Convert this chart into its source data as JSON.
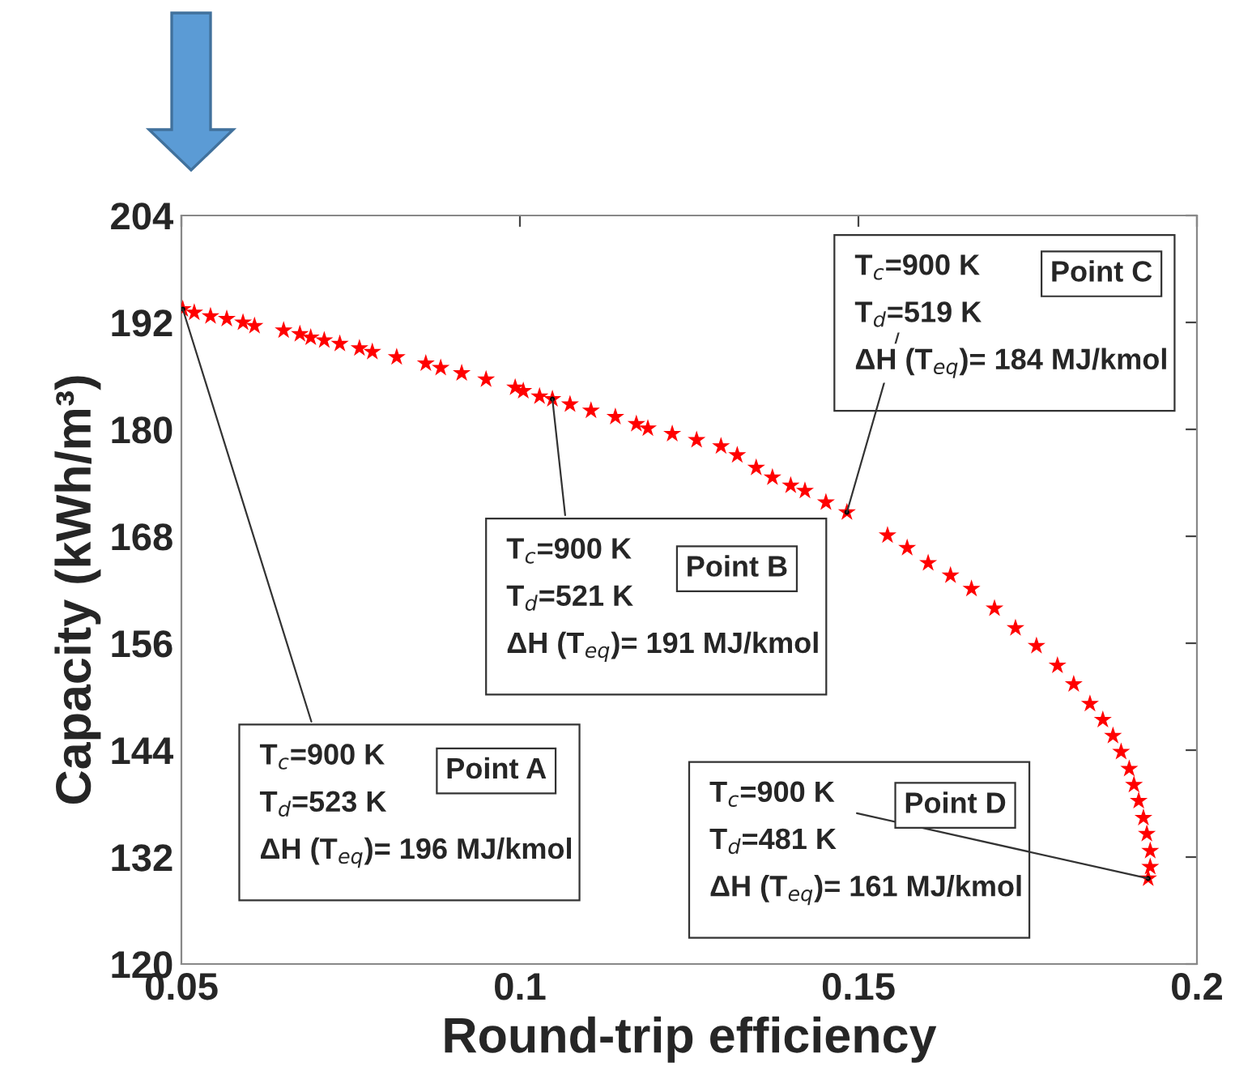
{
  "chart_data": {
    "type": "scatter",
    "xlabel": "Round-trip efficiency",
    "ylabel": "Capacity (kWh/m³)",
    "xlim": [
      0.05,
      0.2
    ],
    "xticks": [
      0.05,
      0.1,
      0.15,
      0.2
    ],
    "ylim": [
      120,
      204
    ],
    "yticks": [
      120,
      132,
      144,
      156,
      168,
      180,
      192,
      204
    ],
    "grid": false,
    "marker": "star",
    "series": [
      {
        "color": "#ff0000",
        "x": [
          0.0502,
          0.0519,
          0.0543,
          0.0567,
          0.0591,
          0.0608,
          0.0651,
          0.0675,
          0.0691,
          0.0711,
          0.0734,
          0.0763,
          0.0782,
          0.0818,
          0.0861,
          0.0883,
          0.0914,
          0.095,
          0.0993,
          0.1005,
          0.1029,
          0.1048,
          0.1074,
          0.1105,
          0.1141,
          0.1172,
          0.1189,
          0.1225,
          0.1261,
          0.1297,
          0.1321,
          0.1349,
          0.1373,
          0.14,
          0.1421,
          0.1452,
          0.1483,
          0.1543,
          0.1572,
          0.1603,
          0.1636,
          0.1667,
          0.1701,
          0.1732,
          0.1763,
          0.1794,
          0.1818,
          0.1842,
          0.1861,
          0.1876,
          0.1888,
          0.19,
          0.1907,
          0.1914,
          0.1921,
          0.1926,
          0.1931,
          0.1931,
          0.1928
        ],
        "values": [
          193.5,
          193.1,
          192.7,
          192.4,
          192.0,
          191.6,
          191.1,
          190.7,
          190.3,
          190.0,
          189.6,
          189.1,
          188.7,
          188.1,
          187.4,
          186.9,
          186.3,
          185.6,
          184.7,
          184.3,
          183.7,
          183.4,
          182.8,
          182.1,
          181.4,
          180.6,
          180.1,
          179.5,
          178.8,
          178.1,
          177.1,
          175.7,
          174.6,
          173.7,
          173.1,
          171.8,
          170.7,
          168.1,
          166.7,
          165.0,
          163.6,
          162.1,
          159.9,
          157.7,
          155.7,
          153.5,
          151.4,
          149.2,
          147.4,
          145.6,
          143.8,
          141.9,
          140.1,
          138.3,
          136.4,
          134.6,
          132.7,
          130.9,
          129.6
        ]
      },
      {
        "color": "#000000",
        "marker": "circle",
        "x": [
          0.0502,
          0.1048,
          0.1483,
          0.1928
        ],
        "values": [
          193.5,
          183.4,
          170.7,
          129.6
        ]
      }
    ],
    "annotations": [
      {
        "text": "T$_{c}$=900 K",
        "x": 0.0502,
        "y": 193.5
      },
      "T$_{d}$=523 K",
      "ΔH (T$_{eq}$)= 196 MJ/kmol",
      "Point A",
      {
        "text": "T$_{c}$=900 K",
        "x": 0.1048,
        "y": 183.4
      },
      "T$_{d}$=521 K",
      "ΔH (T$_{eq}$)= 191 MJ/kmol",
      "Point B",
      {
        "text": "T$_{c}$=900 K",
        "x": 0.1483,
        "y": 170.7
      },
      "T$_{d}$=519 K",
      "ΔH (T$_{eq}$)= 184 MJ/kmol",
      "Point C",
      {
        "text": "T$_{c}$=900 K",
        "x": 0.1928,
        "y": 129.6
      },
      "T$_{d}$=481 K",
      "ΔH (T$_{eq}$)= 161 MJ/kmol",
      "Point D"
    ]
  }
}
